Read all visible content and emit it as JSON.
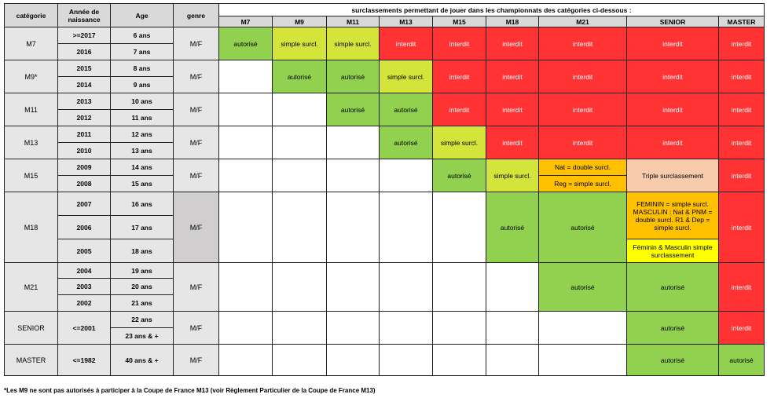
{
  "headers": {
    "categorie": "catégorie",
    "annee": "Année de naissance",
    "age": "Age",
    "genre": "genre",
    "surclassement": "surclassements permettant de jouer dans les championnats des catégories ci-dessous :"
  },
  "cols": [
    "M7",
    "M9",
    "M11",
    "M13",
    "M15",
    "M18",
    "M21",
    "SENIOR",
    "MASTER"
  ],
  "labels": {
    "autorise": "autorisé",
    "simple": "simple surcl.",
    "interdit": "interdit",
    "nat_double": "Nat = double surcl.",
    "reg_simple": "Reg = simple surcl.",
    "triple": "Triple surclassement",
    "feminin_block": "FEMININ = simple surcl. MASCULIN : Nat & PNM = double surcl. R1 & Dep = simple surcl.",
    "fem_masc": "Féminin & Masculin simple surclassement"
  },
  "rows": {
    "m7": {
      "cat": "M7",
      "y1": ">=2017",
      "a1": "6 ans",
      "y2": "2016",
      "a2": "7 ans",
      "g": "M/F"
    },
    "m9": {
      "cat": "M9*",
      "y1": "2015",
      "a1": "8 ans",
      "y2": "2014",
      "a2": "9 ans",
      "g": "M/F"
    },
    "m11": {
      "cat": "M11",
      "y1": "2013",
      "a1": "10 ans",
      "y2": "2012",
      "a2": "11 ans",
      "g": "M/F"
    },
    "m13": {
      "cat": "M13",
      "y1": "2011",
      "a1": "12 ans",
      "y2": "2010",
      "a2": "13 ans",
      "g": "M/F"
    },
    "m15": {
      "cat": "M15",
      "y1": "2009",
      "a1": "14 ans",
      "y2": "2008",
      "a2": "15 ans",
      "g": "M/F"
    },
    "m18": {
      "cat": "M18",
      "y1": "2007",
      "a1": "16 ans",
      "y2": "2006",
      "a2": "17 ans",
      "y3": "2005",
      "a3": "18 ans",
      "g": "M/F"
    },
    "m21": {
      "cat": "M21",
      "y1": "2004",
      "a1": "19 ans",
      "y2": "2003",
      "a2": "20 ans",
      "y3": "2002",
      "a3": "21 ans",
      "g": "M/F"
    },
    "senior": {
      "cat": "SENIOR",
      "y1": "<=2001",
      "a1": "22 ans",
      "a2": "23 ans & +",
      "g": "M/F"
    },
    "master": {
      "cat": "MASTER",
      "y1": "<=1982",
      "a1": "40 ans & +",
      "g": "M/F"
    }
  },
  "footnote": "*Les M9 ne sont pas autorisés à participer à la Coupe de France M13 (voir Règlement Particulier de la Coupe de France M13)"
}
